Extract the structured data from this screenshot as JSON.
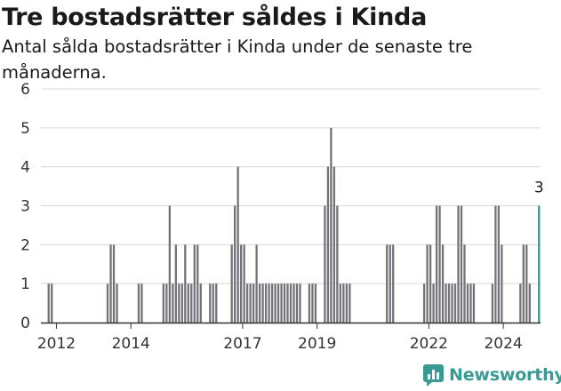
{
  "title": "Tre bostadsrätter såldes i Kinda",
  "subtitle": "Antal sålda bostadsrätter i Kinda under de senaste tre månaderna.",
  "brand": "Newsworthy",
  "colors": {
    "bar": "#737278",
    "highlight": "#2a9d96",
    "grid": "#d8d8d8",
    "axis": "#333333",
    "brand": "#3a9a93"
  },
  "chart_data": {
    "type": "bar",
    "title": "Tre bostadsrätter såldes i Kinda",
    "subtitle": "Antal sålda bostadsrätter i Kinda under de senaste tre månaderna.",
    "xlabel": "",
    "ylabel": "",
    "ylim": [
      0,
      6
    ],
    "yticks": [
      0,
      1,
      2,
      3,
      4,
      5,
      6
    ],
    "xlim": [
      "2011-08",
      "2024-12"
    ],
    "xticks": [
      "2012",
      "2014",
      "2017",
      "2019",
      "2022",
      "2024"
    ],
    "grid": true,
    "legend": "none",
    "highlight_annotation": "3",
    "series": [
      {
        "x": [
          "2011-10",
          "2011-11",
          "2013-05",
          "2013-06",
          "2013-07",
          "2013-08",
          "2014-03",
          "2014-04",
          "2014-11",
          "2014-12",
          "2015-01",
          "2015-02",
          "2015-03",
          "2015-04",
          "2015-05",
          "2015-06",
          "2015-07",
          "2015-08",
          "2015-09",
          "2015-10",
          "2015-11",
          "2016-02",
          "2016-03",
          "2016-04",
          "2016-09",
          "2016-10",
          "2016-11",
          "2016-12",
          "2017-01",
          "2017-02",
          "2017-03",
          "2017-04",
          "2017-05",
          "2017-06",
          "2017-07",
          "2017-08",
          "2017-09",
          "2017-10",
          "2017-11",
          "2017-12",
          "2018-01",
          "2018-02",
          "2018-03",
          "2018-04",
          "2018-05",
          "2018-06",
          "2018-07",
          "2018-10",
          "2018-11",
          "2018-12",
          "2019-03",
          "2019-04",
          "2019-05",
          "2019-06",
          "2019-07",
          "2019-08",
          "2019-09",
          "2019-10",
          "2019-11",
          "2020-11",
          "2020-12",
          "2021-01",
          "2021-11",
          "2021-12",
          "2022-01",
          "2022-02",
          "2022-03",
          "2022-04",
          "2022-05",
          "2022-06",
          "2022-07",
          "2022-08",
          "2022-09",
          "2022-10",
          "2022-11",
          "2022-12",
          "2023-01",
          "2023-02",
          "2023-03",
          "2023-09",
          "2023-10",
          "2023-11",
          "2023-12",
          "2024-06",
          "2024-07",
          "2024-08",
          "2024-09",
          "2024-12"
        ],
        "values": [
          1,
          1,
          1,
          2,
          2,
          1,
          1,
          1,
          1,
          1,
          3,
          1,
          2,
          1,
          1,
          2,
          1,
          1,
          2,
          2,
          1,
          1,
          1,
          1,
          2,
          3,
          4,
          2,
          2,
          1,
          1,
          1,
          2,
          1,
          1,
          1,
          1,
          1,
          1,
          1,
          1,
          1,
          1,
          1,
          1,
          1,
          1,
          1,
          1,
          1,
          3,
          4,
          5,
          4,
          3,
          1,
          1,
          1,
          1,
          2,
          2,
          2,
          1,
          2,
          2,
          1,
          3,
          3,
          2,
          1,
          1,
          1,
          1,
          3,
          3,
          2,
          1,
          1,
          1,
          1,
          3,
          3,
          2,
          1,
          2,
          2,
          1,
          3
        ]
      }
    ]
  }
}
